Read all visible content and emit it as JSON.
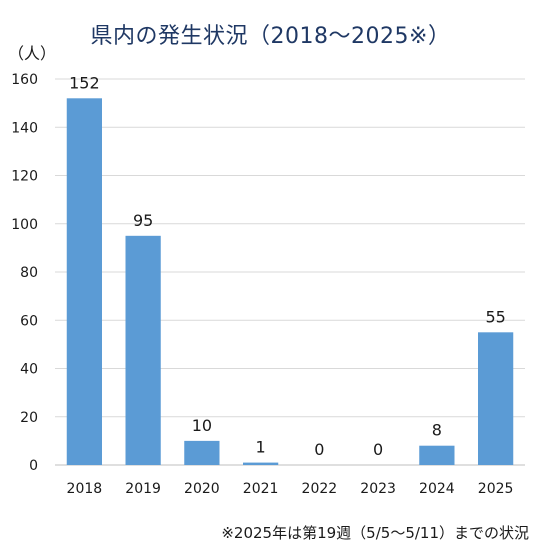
{
  "chart_data": {
    "type": "bar",
    "title": "県内の発生状況（2018～2025※）",
    "ylabel": "（人）",
    "xlabel": "",
    "categories": [
      "2018",
      "2019",
      "2020",
      "2021",
      "2022",
      "2023",
      "2024",
      "2025"
    ],
    "values": [
      152,
      95,
      10,
      1,
      0,
      0,
      8,
      55
    ],
    "data_labels": [
      "152",
      "95",
      "10",
      "1",
      "0",
      "0",
      "8",
      "55"
    ],
    "ylim": [
      0,
      160
    ],
    "yticks": [
      0,
      20,
      40,
      60,
      80,
      100,
      120,
      140,
      160
    ],
    "ytick_labels": [
      "0",
      "20",
      "40",
      "60",
      "80",
      "100",
      "120",
      "140",
      "160"
    ],
    "grid": true,
    "bar_color": "#5b9bd5",
    "footnote": "※2025年は第19週（5/5～5/11）までの状況"
  }
}
